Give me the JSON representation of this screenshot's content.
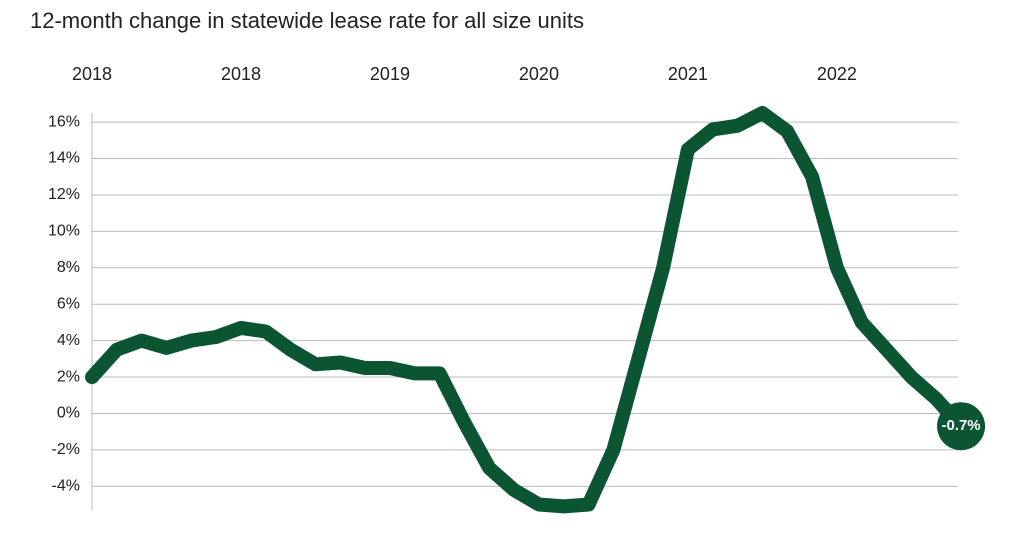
{
  "chart_data": {
    "type": "line",
    "title": "12-month change in statewide lease rate for all size units",
    "categories": [
      "2018",
      null,
      null,
      null,
      null,
      null,
      "2018",
      null,
      null,
      null,
      null,
      null,
      "2019",
      null,
      null,
      null,
      null,
      null,
      "2020",
      null,
      null,
      null,
      null,
      null,
      "2021",
      null,
      null,
      null,
      null,
      null,
      "2022",
      null,
      null,
      null,
      null,
      null
    ],
    "series": [
      {
        "color": "#0b5532",
        "values": [
          2.0,
          3.5,
          4.0,
          3.6,
          4.0,
          4.2,
          4.7,
          4.5,
          3.5,
          2.7,
          2.8,
          2.5,
          2.5,
          2.2,
          2.2,
          -0.5,
          -3.0,
          -4.2,
          -5.0,
          -5.1,
          -5.0,
          -2.0,
          3.0,
          8.0,
          14.5,
          15.6,
          15.8,
          16.5,
          15.5,
          13.0,
          8.0,
          5.0,
          3.5,
          2.0,
          0.8,
          -0.7
        ]
      }
    ],
    "last_value_label": "-0.7%",
    "ylim": [
      -5.3,
      16.5
    ],
    "yticks": [
      {
        "value": -4,
        "label": "-4%"
      },
      {
        "value": -2,
        "label": "-2%"
      },
      {
        "value": 0,
        "label": "0%"
      },
      {
        "value": 2,
        "label": "2%"
      },
      {
        "value": 4,
        "label": "4%"
      },
      {
        "value": 6,
        "label": "6%"
      },
      {
        "value": 8,
        "label": "8%"
      },
      {
        "value": 10,
        "label": "10%"
      },
      {
        "value": 12,
        "label": "12%"
      },
      {
        "value": 14,
        "label": "14%"
      },
      {
        "value": 16,
        "label": "16%"
      }
    ],
    "grid": true
  }
}
